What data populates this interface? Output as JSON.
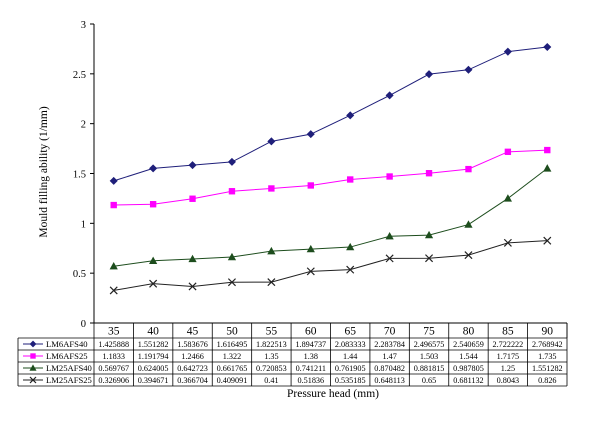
{
  "chart_data": {
    "type": "line",
    "title": "",
    "xlabel": "Pressure head (mm)",
    "ylabel": "Mould filling ability (1/mm)",
    "ylim": [
      0,
      3
    ],
    "yticks": [
      "0",
      "0.5",
      "1",
      "1.5",
      "2",
      "2.5",
      "3"
    ],
    "grid": false,
    "legend": "data-table-below",
    "categories": [
      "35",
      "40",
      "45",
      "50",
      "55",
      "60",
      "65",
      "70",
      "75",
      "80",
      "85",
      "90"
    ],
    "series": [
      {
        "name": "LM6AFS40",
        "marker": "diamond",
        "color": "#1f1f7a",
        "values": [
          1.425888,
          1.551282,
          1.583676,
          1.616495,
          1.822513,
          1.894737,
          2.083333,
          2.283784,
          2.496575,
          2.540659,
          2.722222,
          2.768942
        ],
        "labels": [
          "1.425888",
          "1.551282",
          "1.583676",
          "1.616495",
          "1.822513",
          "1.894737",
          "2.083333",
          "2.283784",
          "2.496575",
          "2.540659",
          "2.722222",
          "2.768942"
        ]
      },
      {
        "name": "LM6AFS25",
        "marker": "square",
        "color": "#ff00ff",
        "values": [
          1.1833,
          1.191794,
          1.2466,
          1.322,
          1.35,
          1.38,
          1.44,
          1.47,
          1.503,
          1.544,
          1.7175,
          1.735
        ],
        "labels": [
          "1.1833",
          "1.191794",
          "1.2466",
          "1.322",
          "1.35",
          "1.38",
          "1.44",
          "1.47",
          "1.503",
          "1.544",
          "1.7175",
          "1.735"
        ]
      },
      {
        "name": "LM25AFS40",
        "marker": "triangle",
        "color": "#1d4d1d",
        "values": [
          0.569767,
          0.624005,
          0.642723,
          0.661765,
          0.720853,
          0.741211,
          0.761905,
          0.870482,
          0.881815,
          0.987805,
          1.25,
          1.551282
        ],
        "labels": [
          "0.569767",
          "0.624005",
          "0.642723",
          "0.661765",
          "0.720853",
          "0.741211",
          "0.761905",
          "0.870482",
          "0.881815",
          "0.987805",
          "1.25",
          "1.551282"
        ]
      },
      {
        "name": "LM25AFS25",
        "marker": "x",
        "color": "#222222",
        "values": [
          0.326906,
          0.394671,
          0.366704,
          0.409091,
          0.41,
          0.51836,
          0.535185,
          0.648113,
          0.65,
          0.681132,
          0.8043,
          0.826
        ],
        "labels": [
          "0.326906",
          "0.394671",
          "0.366704",
          "0.409091",
          "0.41",
          "0.51836",
          "0.535185",
          "0.648113",
          "0.65",
          "0.681132",
          "0.8043",
          "0.826"
        ]
      }
    ]
  }
}
